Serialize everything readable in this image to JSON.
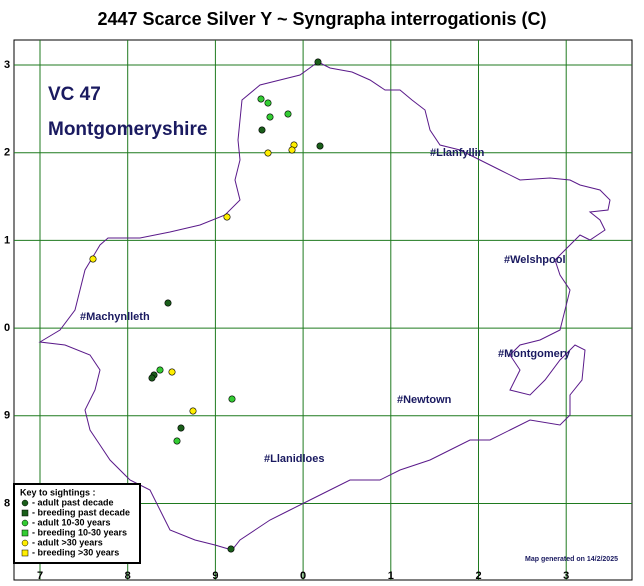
{
  "header": {
    "title": "2447 Scarce Silver Y ~ Syngrapha interrogationis (C)",
    "vc": "VC 47",
    "county": "Montgomeryshire"
  },
  "grid": {
    "x_labels": [
      "7",
      "8",
      "9",
      "0",
      "1",
      "2",
      "3"
    ],
    "y_labels": [
      "3",
      "2",
      "1",
      "0",
      "9",
      "8"
    ]
  },
  "towns": [
    "#Llanfyllin",
    "#Welshpool",
    "#Machynlleth",
    "#Montgomery",
    "#Newtown",
    "#Llanidloes"
  ],
  "legend": {
    "title": "Key to sightings :",
    "items": [
      "- adult past decade",
      "- breeding past decade",
      "- adult 10-30 years",
      "- breeding 10-30 years",
      "- adult >30 years",
      "- breeding >30 years"
    ]
  },
  "footer": "Map generated on 14/2/2025"
}
